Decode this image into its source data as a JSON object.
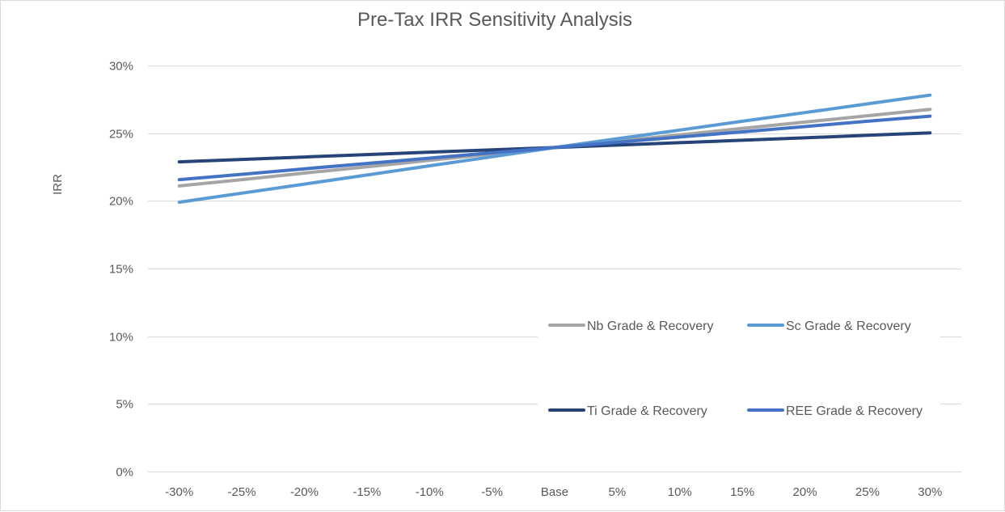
{
  "chart_data": {
    "type": "line",
    "title": "Pre-Tax IRR Sensitivity Analysis",
    "xlabel": "",
    "ylabel": "IRR",
    "categories": [
      "-30%",
      "-25%",
      "-20%",
      "-15%",
      "-10%",
      "-5%",
      "Base",
      "5%",
      "10%",
      "15%",
      "20%",
      "25%",
      "30%"
    ],
    "ylim": [
      0,
      0.3
    ],
    "y_ticks": [
      0,
      0.05,
      0.1,
      0.15,
      0.2,
      0.25,
      0.3
    ],
    "y_tick_labels": [
      "0%",
      "5%",
      "10%",
      "15%",
      "20%",
      "25%",
      "30%"
    ],
    "grid": true,
    "legend_position": "inside-bottom-right",
    "series": [
      {
        "name": "Nb Grade & Recovery",
        "color": "#a5a5a5",
        "values": [
          0.211,
          0.2157,
          0.2205,
          0.2252,
          0.2299,
          0.2347,
          0.2394,
          0.2441,
          0.2488,
          0.2535,
          0.2582,
          0.2629,
          0.2676
        ]
      },
      {
        "name": "Sc Grade & Recovery",
        "color": "#5b9bd5",
        "values": [
          0.199,
          0.2057,
          0.2124,
          0.2191,
          0.2259,
          0.2326,
          0.2394,
          0.2459,
          0.2523,
          0.2588,
          0.2652,
          0.2717,
          0.2781
        ]
      },
      {
        "name": "Ti Grade & Recovery",
        "color": "#264478",
        "values": [
          0.2288,
          0.2306,
          0.2324,
          0.2342,
          0.236,
          0.2377,
          0.2394,
          0.2412,
          0.243,
          0.2448,
          0.2466,
          0.2484,
          0.2502
        ]
      },
      {
        "name": "REE Grade & Recovery",
        "color": "#4472c4",
        "values": [
          0.2157,
          0.2196,
          0.2237,
          0.2276,
          0.2316,
          0.2355,
          0.2394,
          0.2433,
          0.2472,
          0.251,
          0.2549,
          0.2588,
          0.2626
        ]
      }
    ]
  }
}
